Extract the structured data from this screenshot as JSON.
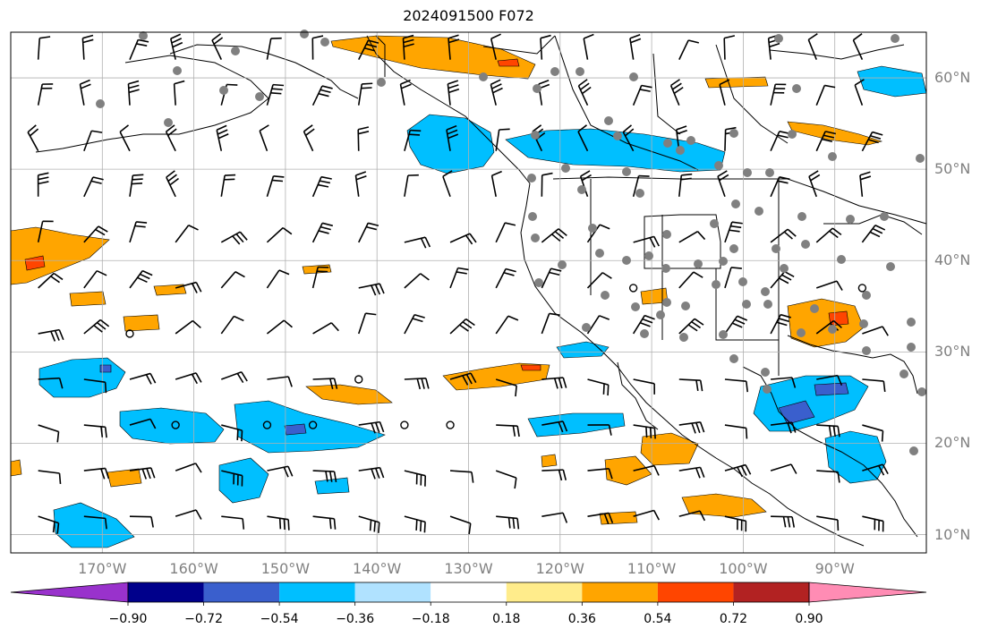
{
  "title": "2024091500 F072",
  "lat_labels": [
    {
      "lat": 60,
      "text": "60°N"
    },
    {
      "lat": 50,
      "text": "50°N"
    },
    {
      "lat": 40,
      "text": "40°N"
    },
    {
      "lat": 30,
      "text": "30°N"
    },
    {
      "lat": 20,
      "text": "20°N"
    },
    {
      "lat": 10,
      "text": "10°N"
    }
  ],
  "lon_labels": [
    {
      "lon": -170,
      "text": "170°W"
    },
    {
      "lon": -160,
      "text": "160°W"
    },
    {
      "lon": -150,
      "text": "150°W"
    },
    {
      "lon": -140,
      "text": "140°W"
    },
    {
      "lon": -130,
      "text": "130°W"
    },
    {
      "lon": -120,
      "text": "120°W"
    },
    {
      "lon": -110,
      "text": "110°W"
    },
    {
      "lon": -100,
      "text": "100°W"
    },
    {
      "lon": -90,
      "text": "90°W"
    }
  ],
  "extent": {
    "lon_min": -180,
    "lon_max": -80,
    "lat_min": 8,
    "lat_max": 65
  },
  "colorbar": {
    "colors": [
      "#9932cc",
      "#00008b",
      "#3a5fcd",
      "#00bfff",
      "#b0e2ff",
      "#ffffff",
      "#ffec8b",
      "#ffa500",
      "#ff4500",
      "#b22222",
      "#ff8cb4"
    ],
    "tick_labels": [
      "−0.90",
      "−0.72",
      "−0.54",
      "−0.36",
      "−0.18",
      "0.18",
      "0.36",
      "0.54",
      "0.72",
      "0.90"
    ]
  },
  "colors": {
    "positive_strong": "#ff4500",
    "positive": "#ffa500",
    "negative": "#00bfff",
    "negative_strong": "#3a5fcd",
    "grid": "#b0b0b0",
    "station_dot": "#808080"
  }
}
